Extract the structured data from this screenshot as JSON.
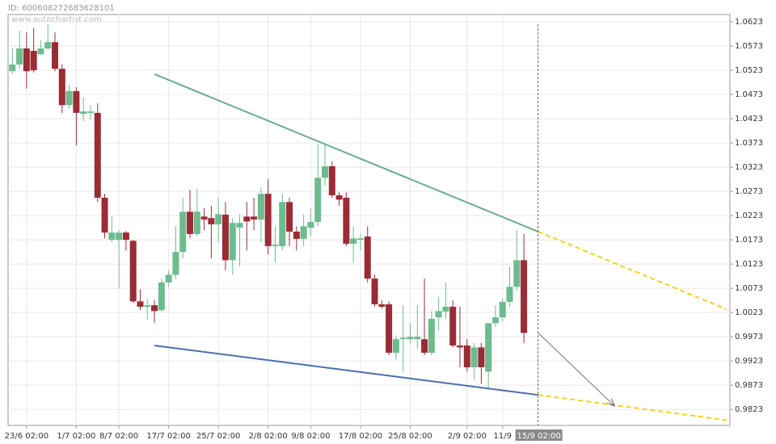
{
  "chart_data": {
    "type": "candlestick",
    "id_label": "ID: 600608272683628101",
    "watermark": "www.autochartist.com",
    "categories": [
      null,
      null,
      "23/6 02:00",
      null,
      null,
      null,
      null,
      null,
      null,
      "1/7 02:00",
      null,
      null,
      null,
      null,
      null,
      "8/7 02:00",
      null,
      null,
      null,
      null,
      null,
      null,
      "17/7 02:00",
      null,
      null,
      null,
      null,
      null,
      null,
      "25/7 02:00",
      null,
      null,
      null,
      null,
      null,
      null,
      "2/8 02:00",
      null,
      null,
      null,
      null,
      null,
      "9/8 02:00",
      null,
      null,
      null,
      null,
      null,
      null,
      "17/8 02:00",
      null,
      null,
      null,
      null,
      null,
      null,
      "25/8 02:00",
      null,
      null,
      null,
      null,
      null,
      null,
      null,
      "2/9 02:00",
      null,
      null,
      null,
      null,
      "11/9",
      null,
      null,
      null
    ],
    "open": [
      1.0521,
      1.0535,
      1.0568,
      1.0563,
      1.0556,
      1.0568,
      1.0581,
      1.0526,
      1.0451,
      1.048,
      1.0433,
      1.0435,
      1.0435,
      1.026,
      1.0173,
      1.0173,
      1.0188,
      1.0171,
      1.0046,
      1.0035,
      1.0038,
      1.0028,
      1.0085,
      1.0101,
      1.0148,
      1.0231,
      1.0185,
      1.0221,
      1.0218,
      1.0205,
      1.0225,
      1.0131,
      1.0198,
      1.0221,
      1.0221,
      1.0215,
      1.0268,
      1.016,
      1.016,
      1.0251,
      1.019,
      1.0175,
      1.0198,
      1.021,
      1.0301,
      1.0325,
      1.0265,
      1.026,
      1.0165,
      1.0173,
      1.018,
      1.0093,
      1.004,
      1.004,
      0.994,
      0.9968,
      0.9968,
      0.9968,
      0.9968,
      0.994,
      1.0013,
      1.0025,
      1.0035,
      0.9955,
      0.9955,
      0.991,
      0.9951,
      0.9901,
      1.0001,
      1.0013,
      1.0045,
      1.0076,
      1.0131
    ],
    "high": [
      1.0568,
      1.0605,
      1.0601,
      1.061,
      1.0585,
      1.0618,
      1.0601,
      1.0535,
      1.0493,
      1.0488,
      1.0468,
      1.0451,
      1.0455,
      1.0268,
      1.0221,
      1.0193,
      1.0191,
      1.0173,
      1.0071,
      1.0051,
      1.0048,
      1.0093,
      1.011,
      1.0201,
      1.026,
      1.0276,
      1.0278,
      1.0238,
      1.0243,
      1.026,
      1.0251,
      1.0218,
      1.0226,
      1.0251,
      1.026,
      1.0281,
      1.0298,
      1.0201,
      1.0268,
      1.026,
      1.0201,
      1.0226,
      1.0238,
      1.0371,
      1.0371,
      1.0335,
      1.0271,
      1.0271,
      1.0201,
      1.0185,
      1.0201,
      1.0101,
      1.0048,
      1.0046,
      0.9976,
      1.0038,
      1.0001,
      1.0038,
      1.0093,
      1.0026,
      1.0055,
      1.0085,
      1.0048,
      1.0035,
      0.9968,
      0.996,
      0.996,
      1.0001,
      1.0038,
      1.0051,
      1.0118,
      1.0193,
      1.0185
    ],
    "low": [
      1.0515,
      1.0526,
      1.0485,
      1.0518,
      1.0555,
      1.0565,
      1.0521,
      1.0435,
      1.0443,
      1.0368,
      1.0418,
      1.0421,
      1.0251,
      1.0176,
      1.0168,
      1.0073,
      1.0151,
      1.0043,
      1.0028,
      1.0008,
      1.0001,
      1.0025,
      1.0076,
      1.0093,
      1.0135,
      1.0176,
      1.0181,
      1.0193,
      1.0135,
      1.0168,
      1.011,
      1.0101,
      1.0118,
      1.0151,
      1.0193,
      1.0168,
      1.0143,
      1.0126,
      1.0151,
      1.016,
      1.0151,
      1.016,
      1.0181,
      1.0201,
      1.0285,
      1.026,
      1.0243,
      1.016,
      1.0126,
      1.0151,
      1.0085,
      1.0035,
      1.0031,
      0.9935,
      0.9926,
      0.9901,
      0.996,
      0.9948,
      0.9935,
      0.9935,
      0.9985,
      1.001,
      0.9951,
      0.991,
      0.9901,
      0.9885,
      0.9876,
      0.9868,
      0.9993,
      1.0005,
      1.0035,
      1.0068,
      0.996
    ],
    "close": [
      1.0535,
      1.0568,
      1.0521,
      1.0523,
      1.0568,
      1.0581,
      1.0526,
      1.0451,
      1.048,
      1.0435,
      1.0438,
      1.0438,
      1.026,
      1.0188,
      1.0188,
      1.0188,
      1.0173,
      1.0046,
      1.0035,
      1.0038,
      1.0026,
      1.0085,
      1.0101,
      1.0148,
      1.0231,
      1.0185,
      1.0231,
      1.0215,
      1.0205,
      1.0226,
      1.0131,
      1.0208,
      1.0208,
      1.0211,
      1.0215,
      1.0268,
      1.016,
      1.0163,
      1.0251,
      1.019,
      1.0175,
      1.0201,
      1.021,
      1.0301,
      1.0325,
      1.0265,
      1.0256,
      1.0165,
      1.0176,
      1.0176,
      1.0093,
      1.004,
      1.0035,
      0.994,
      0.9968,
      0.9971,
      0.9973,
      0.9973,
      0.994,
      1.001,
      1.0026,
      1.0035,
      0.9955,
      0.9951,
      0.991,
      0.9951,
      0.991,
      1.0001,
      1.0013,
      1.0045,
      1.0076,
      1.0131,
      0.9981
    ],
    "up_color": "#6dbb8e",
    "down_color": "#9a2c35",
    "xlim": [
      -0.6,
      101
    ],
    "ylim": [
      0.979,
      1.0638
    ],
    "yticks": [
      1.0623,
      1.0573,
      1.0523,
      1.0473,
      1.0423,
      1.0373,
      1.0323,
      1.0273,
      1.0223,
      1.0173,
      1.0123,
      1.0073,
      1.0023,
      0.9973,
      0.9923,
      0.9873,
      0.9823
    ],
    "grid": true,
    "trend_lines": [
      {
        "color": "#6aae8c",
        "dashed": false,
        "x": [
          20,
          74
        ],
        "values": [
          1.0515,
          1.019
        ]
      },
      {
        "color": "#f2d21b",
        "dashed": true,
        "x": [
          74,
          100.5
        ],
        "values": [
          1.019,
          1.003
        ]
      },
      {
        "color": "#4a6fae",
        "dashed": false,
        "x": [
          20,
          74
        ],
        "values": [
          0.9955,
          0.9853
        ]
      },
      {
        "color": "#f2d21b",
        "dashed": true,
        "x": [
          74,
          100.5
        ],
        "values": [
          0.9853,
          0.9801
        ]
      }
    ],
    "forecast_arrow": {
      "color": "#777777",
      "x": [
        74,
        84.7
      ],
      "values": [
        0.9981,
        0.9831
      ]
    },
    "cursor": {
      "x": 74,
      "label": "15/9 02:00"
    }
  }
}
